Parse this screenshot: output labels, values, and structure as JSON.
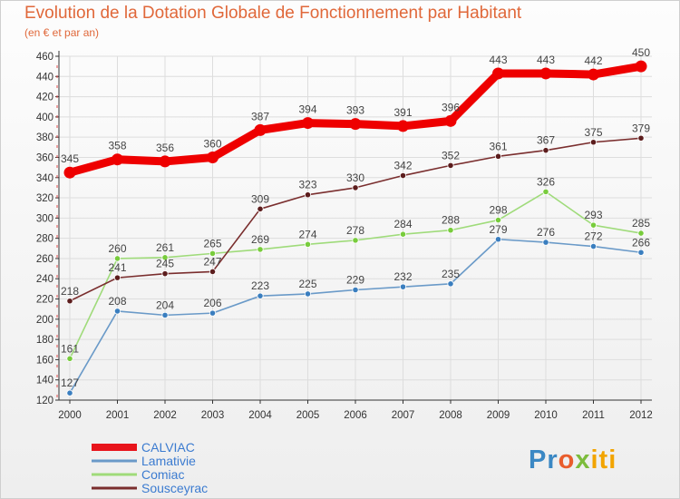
{
  "title": "Evolution de la Dotation Globale de Fonctionnement par Habitant",
  "subtitle": "(en € et par an)",
  "logo": {
    "part1": "Pr",
    "part2": "o",
    "part3": "x",
    "part4": "iti"
  },
  "colors": {
    "title": "#e0683a",
    "axis": "#333333",
    "grid": "#dddddd",
    "tick_marks": "#e34b4b",
    "label": "#444444"
  },
  "chart_data": {
    "type": "line",
    "x": [
      "2000",
      "2001",
      "2002",
      "2003",
      "2004",
      "2005",
      "2006",
      "2007",
      "2008",
      "2009",
      "2010",
      "2011",
      "2012"
    ],
    "ylim": [
      120,
      460
    ],
    "yticks": [
      120,
      140,
      160,
      180,
      200,
      220,
      240,
      260,
      280,
      300,
      320,
      340,
      360,
      380,
      400,
      420,
      440,
      460
    ],
    "grid": true,
    "legend_position": "bottom-left",
    "series": [
      {
        "name": "CALVIAC",
        "color": "#ee0000",
        "legend_color": "#e8141b",
        "weight": "bold",
        "values": [
          345,
          358,
          356,
          360,
          387,
          394,
          393,
          391,
          396,
          443,
          443,
          442,
          450
        ]
      },
      {
        "name": "Lamativie",
        "color": "#6a9ac8",
        "marker": "#3a7ebf",
        "values": [
          127,
          208,
          204,
          206,
          223,
          225,
          229,
          232,
          235,
          279,
          276,
          272,
          266
        ]
      },
      {
        "name": "Comiac",
        "color": "#9fdb7a",
        "marker": "#78cc3c",
        "values": [
          161,
          260,
          261,
          265,
          269,
          274,
          278,
          284,
          288,
          298,
          326,
          293,
          285
        ]
      },
      {
        "name": "Sousceyrac",
        "color": "#7a2e2e",
        "marker": "#5c1d1d",
        "values": [
          218,
          241,
          245,
          247,
          309,
          323,
          330,
          342,
          352,
          361,
          367,
          375,
          379
        ]
      }
    ]
  }
}
